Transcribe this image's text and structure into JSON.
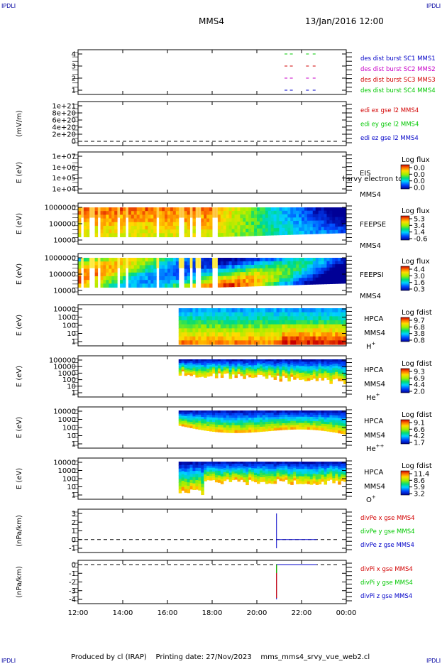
{
  "page": {
    "corner_label": "IPDLI",
    "spacecraft": "MMS4",
    "datetime": "13/Jan/2016 12:00",
    "footer": "Produced by cl (IRAP)    Printing date: 27/Nov/2023    mms_mms4_srvy_vue_web2.cl"
  },
  "colors": {
    "blue": "#0000c8",
    "magenta": "#c800c8",
    "red": "#d20000",
    "green": "#00c800",
    "black": "#000000"
  },
  "chart_data": {
    "type": "heatmap",
    "x_ticks": [
      "12:00",
      "14:00",
      "16:00",
      "18:00",
      "20:00",
      "22:00",
      "00:00"
    ],
    "xlim": [
      "12:00",
      "00:00"
    ],
    "panels": [
      {
        "id": "burst",
        "type": "line",
        "ylabel": "",
        "yticks": [
          "1",
          "2",
          "3",
          "4"
        ],
        "legend": [
          {
            "text": "des dist burst SC1 MMS1",
            "color": "blue"
          },
          {
            "text": "des dist burst SC2 MMS2",
            "color": "magenta"
          },
          {
            "text": "des dist burst SC3 MMS3",
            "color": "red"
          },
          {
            "text": "des dist burst SC4 MMS4",
            "color": "green"
          }
        ]
      },
      {
        "id": "edi",
        "type": "line",
        "ylabel": "(mV/m)",
        "yticks": [
          "0",
          "2e+20",
          "4e+20",
          "6e+20",
          "8e+20",
          "1e+21"
        ],
        "legend": [
          {
            "text": "edi ex gse l2 MMS4",
            "color": "red"
          },
          {
            "text": "edi ey gse l2 MMS4",
            "color": "green"
          },
          {
            "text": "edi ez gse l2 MMS4",
            "color": "blue"
          }
        ]
      },
      {
        "id": "eis",
        "type": "heatmap",
        "ylabel": "E (eV)",
        "yticks": [
          "1e+04",
          "1e+05",
          "1e+06",
          "1e+07"
        ],
        "instrument": "EIS",
        "spacecraft": "MMS4",
        "note": "l srvy electron to",
        "cbar_title": "Log flux",
        "cbar_ticks": [
          "0.0",
          "0.0",
          "0.0",
          "0.0"
        ]
      },
      {
        "id": "feepse",
        "type": "heatmap",
        "ylabel": "E (eV)",
        "yticks": [
          "10000",
          "100000",
          "1000000"
        ],
        "instrument": "FEEPSE",
        "spacecraft": "MMS4",
        "cbar_title": "Log flux",
        "cbar_ticks": [
          "5.3",
          "3.4",
          "1.4",
          "-0.6"
        ]
      },
      {
        "id": "feepsi",
        "type": "heatmap",
        "ylabel": "E (eV)",
        "yticks": [
          "10000",
          "100000",
          "1000000"
        ],
        "instrument": "FEEPSI",
        "spacecraft": "MMS4",
        "cbar_title": "Log flux",
        "cbar_ticks": [
          "4.4",
          "3.0",
          "1.6",
          "0.3"
        ]
      },
      {
        "id": "hpca_h",
        "type": "heatmap",
        "ylabel": "E (eV)",
        "yticks": [
          "1",
          "10",
          "100",
          "1000",
          "10000"
        ],
        "instrument": "HPCA",
        "spacecraft": "MMS4",
        "species": "H",
        "species_sup": "+",
        "cbar_title": "Log fdist",
        "cbar_ticks": [
          "9.7",
          "6.8",
          "3.8",
          "0.8"
        ]
      },
      {
        "id": "hpca_he",
        "type": "heatmap",
        "ylabel": "E (eV)",
        "yticks": [
          "1",
          "10",
          "100",
          "1000",
          "10000",
          "100000"
        ],
        "instrument": "HPCA",
        "spacecraft": "MMS4",
        "species": "He",
        "species_sup": "+",
        "cbar_title": "Log fdist",
        "cbar_ticks": [
          "9.3",
          "6.9",
          "4.4",
          "2.0"
        ]
      },
      {
        "id": "hpca_hepp",
        "type": "heatmap",
        "ylabel": "E (eV)",
        "yticks": [
          "1",
          "10",
          "100",
          "1000",
          "10000"
        ],
        "instrument": "HPCA",
        "spacecraft": "MMS4",
        "species": "He",
        "species_sup": "++",
        "cbar_title": "Log fdist",
        "cbar_ticks": [
          "9.1",
          "6.6",
          "4.2",
          "1.7"
        ]
      },
      {
        "id": "hpca_o",
        "type": "heatmap",
        "ylabel": "E (eV)",
        "yticks": [
          "1",
          "10",
          "100",
          "1000",
          "10000"
        ],
        "instrument": "HPCA",
        "spacecraft": "MMS4",
        "species": "O",
        "species_sup": "+",
        "cbar_title": "Log fdist",
        "cbar_ticks": [
          "11.4",
          "8.6",
          "5.9",
          "3.2"
        ]
      },
      {
        "id": "divpe",
        "type": "line",
        "ylabel": "(nPa/km)",
        "yticks": [
          "-1",
          "0",
          "1",
          "2",
          "3"
        ],
        "legend": [
          {
            "text": "divPe x gse MMS4",
            "color": "red"
          },
          {
            "text": "divPe y gse MMS4",
            "color": "green"
          },
          {
            "text": "divPe z gse MMS4",
            "color": "blue"
          }
        ]
      },
      {
        "id": "divpi",
        "type": "line",
        "ylabel": "(nPa/km)",
        "yticks": [
          "-4",
          "-3",
          "-2",
          "-1",
          "0"
        ],
        "legend": [
          {
            "text": "divPi x gse MMS4",
            "color": "red"
          },
          {
            "text": "divPi y gse MMS4",
            "color": "green"
          },
          {
            "text": "divPi z gse MMS4",
            "color": "blue"
          }
        ]
      }
    ]
  }
}
